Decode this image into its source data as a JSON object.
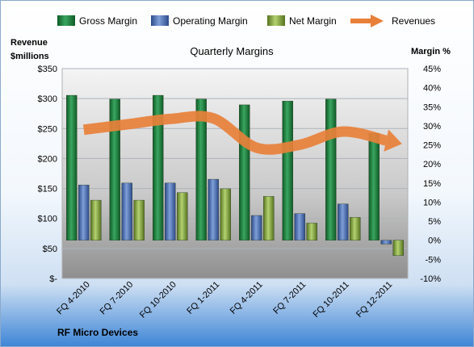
{
  "chart_data": {
    "type": "bar",
    "title": "Quarterly Margins",
    "footer": "RF Micro Devices",
    "left_axis_label_line1": "Revenue",
    "left_axis_label_line2": "$millions",
    "right_axis_label": "Margin %",
    "categories": [
      "FQ 4-2010",
      "FQ 7-2010",
      "FQ 10-2010",
      "FQ 1-2011",
      "FQ 4-2011",
      "FQ 7-2011",
      "FQ 10-2011",
      "FQ 12-2011"
    ],
    "left_axis": {
      "min": 0,
      "max": 350,
      "step": 50,
      "ticks": [
        "$-",
        "$50",
        "$100",
        "$150",
        "$200",
        "$250",
        "$300",
        "$350"
      ]
    },
    "right_axis": {
      "min": -10,
      "max": 45,
      "step": 5,
      "ticks": [
        "-10%",
        "-5%",
        "0%",
        "5%",
        "10%",
        "15%",
        "20%",
        "25%",
        "30%",
        "35%",
        "40%",
        "45%"
      ]
    },
    "series": [
      {
        "name": "Gross Margin",
        "kind": "bar",
        "axis": "right",
        "color": "#1f7a3e",
        "values": [
          38,
          37,
          38,
          37,
          35.5,
          36.5,
          37,
          28
        ]
      },
      {
        "name": "Operating Margin",
        "kind": "bar",
        "axis": "right",
        "color": "#4a6fb5",
        "values": [
          14.5,
          15,
          15,
          16,
          6.5,
          7,
          9.5,
          -1
        ]
      },
      {
        "name": "Net Margin",
        "kind": "bar",
        "axis": "right",
        "color": "#84a93a",
        "values": [
          10.5,
          10.5,
          12.5,
          13.5,
          11.5,
          4.5,
          6,
          -4
        ]
      },
      {
        "name": "Revenues",
        "kind": "line",
        "axis": "left",
        "color": "#e8803a",
        "values": [
          248,
          257,
          266,
          267,
          218,
          223,
          245,
          230
        ]
      }
    ],
    "grid": true,
    "legend_position": "top"
  }
}
